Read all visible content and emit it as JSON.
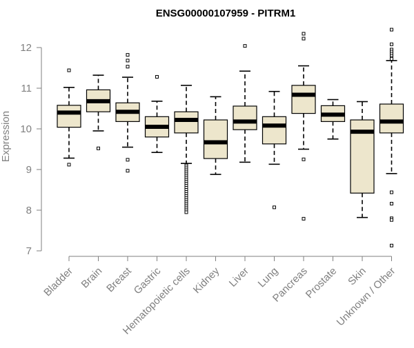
{
  "chart_data": {
    "type": "box",
    "title": "ENSG00000107959 - PITRM1",
    "xlabel": "",
    "ylabel": "Expression",
    "ylim": [
      7,
      12.4
    ],
    "yticks": [
      7,
      8,
      9,
      10,
      11,
      12
    ],
    "grid": false,
    "legend": "none",
    "colors": {
      "box_fill": "#ede6cc",
      "box_stroke": "#000000",
      "median": "#000000",
      "axis": "#7f7f7f"
    },
    "categories": [
      "Bladder",
      "Brain",
      "Breast",
      "Gastric",
      "Hematopoietic cells",
      "Kidney",
      "Liver",
      "Lung",
      "Pancreas",
      "Prostate",
      "Skin",
      "Unknown / Other"
    ],
    "boxes": [
      {
        "label": "Bladder",
        "whisker_low": 9.28,
        "q1": 10.04,
        "median": 10.4,
        "q3": 10.58,
        "whisker_high": 11.02,
        "outliers": [
          11.44,
          9.12
        ]
      },
      {
        "label": "Brain",
        "whisker_low": 9.95,
        "q1": 10.42,
        "median": 10.68,
        "q3": 10.96,
        "whisker_high": 11.32,
        "outliers": [
          9.52
        ]
      },
      {
        "label": "Breast",
        "whisker_low": 9.55,
        "q1": 10.18,
        "median": 10.42,
        "q3": 10.64,
        "whisker_high": 11.27,
        "outliers": [
          11.82,
          11.68,
          11.53,
          9.24,
          8.97
        ]
      },
      {
        "label": "Gastric",
        "whisker_low": 9.42,
        "q1": 9.8,
        "median": 10.05,
        "q3": 10.3,
        "whisker_high": 10.68,
        "outliers": [
          11.28
        ]
      },
      {
        "label": "Hematopoietic cells",
        "whisker_low": 9.15,
        "q1": 9.9,
        "median": 10.22,
        "q3": 10.42,
        "whisker_high": 11.07,
        "outliers": [
          9.1,
          9.05,
          9.0,
          8.95,
          8.9,
          8.85,
          8.8,
          8.75,
          8.7,
          8.65,
          8.6,
          8.55,
          8.5,
          8.45,
          8.4,
          8.35,
          8.3,
          8.25,
          8.2,
          8.15,
          8.1,
          8.05,
          8.0,
          7.95
        ]
      },
      {
        "label": "Kidney",
        "whisker_low": 8.88,
        "q1": 9.27,
        "median": 9.67,
        "q3": 10.22,
        "whisker_high": 10.79,
        "outliers": []
      },
      {
        "label": "Liver",
        "whisker_low": 9.18,
        "q1": 9.98,
        "median": 10.18,
        "q3": 10.56,
        "whisker_high": 11.42,
        "outliers": [
          12.04
        ]
      },
      {
        "label": "Lung",
        "whisker_low": 9.13,
        "q1": 9.63,
        "median": 10.08,
        "q3": 10.3,
        "whisker_high": 10.92,
        "outliers": [
          8.07
        ]
      },
      {
        "label": "Pancreas",
        "whisker_low": 9.5,
        "q1": 10.38,
        "median": 10.84,
        "q3": 11.07,
        "whisker_high": 11.55,
        "outliers": [
          12.34,
          12.22,
          9.25,
          7.79
        ]
      },
      {
        "label": "Prostate",
        "whisker_low": 9.75,
        "q1": 10.18,
        "median": 10.35,
        "q3": 10.57,
        "whisker_high": 10.72,
        "outliers": []
      },
      {
        "label": "Skin",
        "whisker_low": 7.82,
        "q1": 8.42,
        "median": 9.93,
        "q3": 10.22,
        "whisker_high": 10.67,
        "outliers": []
      },
      {
        "label": "Unknown / Other",
        "whisker_low": 8.9,
        "q1": 9.9,
        "median": 10.18,
        "q3": 10.61,
        "whisker_high": 11.68,
        "outliers": [
          12.44,
          12.08,
          11.95,
          11.9,
          11.85,
          11.8,
          11.75,
          11.72,
          8.44,
          8.16,
          7.8,
          7.76,
          7.13
        ]
      }
    ]
  }
}
